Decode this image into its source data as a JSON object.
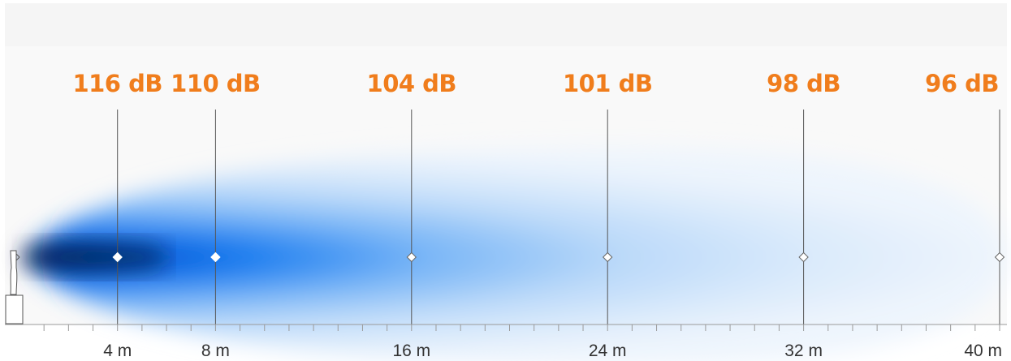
{
  "colors": {
    "label": "#f07d1c",
    "marker_line": "#555555",
    "axis": "#9a9a9a",
    "axis_text": "#333333",
    "panel_bg": "#f5f5f5",
    "beam_core": "#08132e",
    "beam_mid": "#0064e6",
    "beam_light": "#9ecbfa",
    "beam_faint": "#e9f3fd"
  },
  "axis": {
    "unit": "m",
    "max": 40,
    "tick_step": 1,
    "labels": [
      "4 m",
      "8 m",
      "16 m",
      "24 m",
      "32 m",
      "40 m"
    ]
  },
  "measurements": [
    {
      "distance": 4,
      "level": "116 dB"
    },
    {
      "distance": 8,
      "level": "110 dB"
    },
    {
      "distance": 16,
      "level": "104 dB"
    },
    {
      "distance": 24,
      "level": "101 dB"
    },
    {
      "distance": 32,
      "level": "98 dB"
    },
    {
      "distance": 40,
      "level": "96 dB"
    }
  ],
  "device": {
    "icon": "loudspeaker-icon"
  }
}
